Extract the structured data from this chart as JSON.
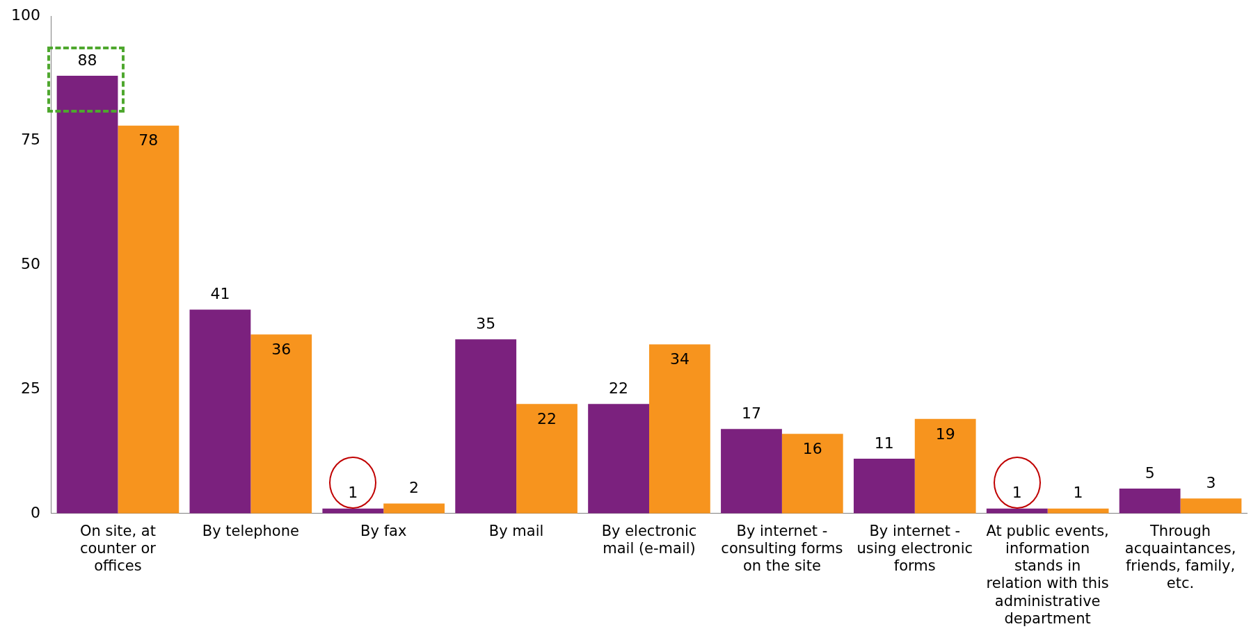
{
  "chart_data": {
    "type": "bar",
    "categories": [
      "On site, at counter or offices",
      "By telephone",
      "By fax",
      "By mail",
      "By electronic mail (e-mail)",
      "By internet - consulting forms on the site",
      "By internet - using electronic forms",
      "At public events, information stands in relation with this administrative department",
      "Through acquaintances, friends, family, etc."
    ],
    "series": [
      {
        "color": "#7b217e",
        "values": [
          88,
          41,
          1,
          35,
          22,
          17,
          11,
          1,
          5
        ]
      },
      {
        "color": "#f7941e",
        "values": [
          78,
          36,
          2,
          22,
          34,
          16,
          19,
          1,
          3
        ]
      }
    ],
    "ylim": [
      0,
      100
    ],
    "yticks": [
      0,
      25,
      50,
      75,
      100
    ],
    "grid": false,
    "legend": false,
    "data_labels": true
  }
}
